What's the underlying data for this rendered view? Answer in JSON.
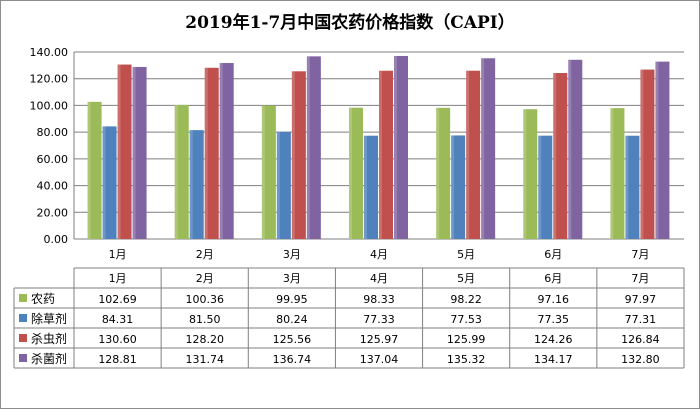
{
  "chart_data": {
    "type": "bar",
    "title": "2019年1-7月中国农药价格指数（CAPI）",
    "categories": [
      "1月",
      "2月",
      "3月",
      "4月",
      "5月",
      "6月",
      "7月"
    ],
    "series": [
      {
        "name": "农药",
        "values": [
          102.69,
          100.36,
          99.95,
          98.33,
          98.22,
          97.16,
          97.97
        ],
        "color": "#9bbb59"
      },
      {
        "name": "除草剂",
        "values": [
          84.31,
          81.5,
          80.24,
          77.33,
          77.53,
          77.35,
          77.31
        ],
        "color": "#4f81bd"
      },
      {
        "name": "杀虫剂",
        "values": [
          130.6,
          128.2,
          125.56,
          125.97,
          125.99,
          124.26,
          126.84
        ],
        "color": "#c0504d"
      },
      {
        "name": "杀菌剂",
        "values": [
          128.81,
          131.74,
          136.74,
          137.04,
          135.32,
          134.17,
          132.8
        ],
        "color": "#8064a2"
      }
    ],
    "yticks": [
      "0.00",
      "20.00",
      "40.00",
      "60.00",
      "80.00",
      "100.00",
      "120.00",
      "140.00"
    ],
    "ylim": [
      0,
      140
    ],
    "grid": true,
    "legend": "data-table",
    "table_values": [
      [
        "102.69",
        "100.36",
        "99.95",
        "98.33",
        "98.22",
        "97.16",
        "97.97"
      ],
      [
        "84.31",
        "81.50",
        "80.24",
        "77.33",
        "77.53",
        "77.35",
        "77.31"
      ],
      [
        "130.60",
        "128.20",
        "125.56",
        "125.97",
        "125.99",
        "124.26",
        "126.84"
      ],
      [
        "128.81",
        "131.74",
        "136.74",
        "137.04",
        "135.32",
        "134.17",
        "132.80"
      ]
    ]
  }
}
